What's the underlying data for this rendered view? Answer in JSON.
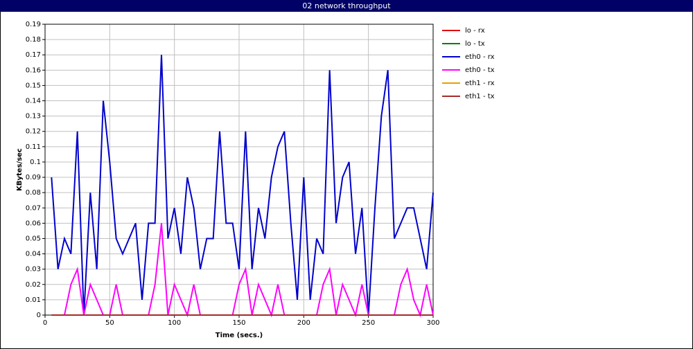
{
  "chart_data": {
    "type": "line",
    "title": "02 network throughput",
    "x_label": "Time (secs.)",
    "y_label": "KBytes/sec",
    "x": [
      5,
      10,
      15,
      20,
      25,
      30,
      35,
      40,
      45,
      50,
      55,
      60,
      65,
      70,
      75,
      80,
      85,
      90,
      95,
      100,
      105,
      110,
      115,
      120,
      125,
      130,
      135,
      140,
      145,
      150,
      155,
      160,
      165,
      170,
      175,
      180,
      185,
      190,
      195,
      200,
      205,
      210,
      215,
      220,
      225,
      230,
      235,
      240,
      245,
      250,
      255,
      260,
      265,
      270,
      275,
      280,
      285,
      290,
      295,
      300
    ],
    "xlim": [
      0,
      300
    ],
    "xticks": [
      0,
      50,
      100,
      150,
      200,
      250,
      300
    ],
    "ylim": [
      0,
      0.19
    ],
    "yticks": [
      0,
      0.01,
      0.02,
      0.03,
      0.04,
      0.05,
      0.06,
      0.07,
      0.08,
      0.09,
      0.1,
      0.11,
      0.12,
      0.13,
      0.14,
      0.15,
      0.16,
      0.17,
      0.18,
      0.19
    ],
    "grid": true,
    "legend": "right",
    "series": [
      {
        "name": "lo - rx",
        "color": "#e00000",
        "values": [
          0,
          0,
          0,
          0,
          0,
          0,
          0,
          0,
          0,
          0,
          0,
          0,
          0,
          0,
          0,
          0,
          0,
          0,
          0,
          0,
          0,
          0,
          0,
          0,
          0,
          0,
          0,
          0,
          0,
          0,
          0,
          0,
          0,
          0,
          0,
          0,
          0,
          0,
          0,
          0,
          0,
          0,
          0,
          0,
          0,
          0,
          0,
          0,
          0,
          0,
          0,
          0,
          0,
          0,
          0,
          0,
          0,
          0,
          0,
          0
        ]
      },
      {
        "name": "lo - tx",
        "color": "#008000",
        "values": [
          0,
          0,
          0,
          0,
          0,
          0,
          0,
          0,
          0,
          0,
          0,
          0,
          0,
          0,
          0,
          0,
          0,
          0,
          0,
          0,
          0,
          0,
          0,
          0,
          0,
          0,
          0,
          0,
          0,
          0,
          0,
          0,
          0,
          0,
          0,
          0,
          0,
          0,
          0,
          0,
          0,
          0,
          0,
          0,
          0,
          0,
          0,
          0,
          0,
          0,
          0,
          0,
          0,
          0,
          0,
          0,
          0,
          0,
          0,
          0
        ]
      },
      {
        "name": "eth0 - rx",
        "color": "#0000cc",
        "values": [
          0.09,
          0.03,
          0.05,
          0.04,
          0.12,
          0,
          0.08,
          0.03,
          0.14,
          0.1,
          0.05,
          0.04,
          0.05,
          0.06,
          0.01,
          0.06,
          0.06,
          0.17,
          0.05,
          0.07,
          0.04,
          0.09,
          0.07,
          0.03,
          0.05,
          0.05,
          0.12,
          0.06,
          0.06,
          0.03,
          0.12,
          0.03,
          0.07,
          0.05,
          0.09,
          0.11,
          0.12,
          0.06,
          0.01,
          0.09,
          0.01,
          0.05,
          0.04,
          0.16,
          0.06,
          0.09,
          0.1,
          0.04,
          0.07,
          0,
          0.07,
          0.13,
          0.16,
          0.05,
          0.06,
          0.07,
          0.07,
          0.05,
          0.03,
          0.08
        ]
      },
      {
        "name": "eth0 - tx",
        "color": "#ff00ff",
        "values": [
          0,
          0,
          0,
          0.02,
          0.03,
          0,
          0.02,
          0.01,
          0,
          0,
          0.02,
          0,
          0,
          0,
          0,
          0,
          0.02,
          0.06,
          0,
          0.02,
          0.01,
          0,
          0.02,
          0,
          0,
          0,
          0,
          0,
          0,
          0.02,
          0.03,
          0,
          0.02,
          0.01,
          0,
          0.02,
          0,
          0,
          0,
          0,
          0,
          0,
          0.02,
          0.03,
          0,
          0.02,
          0.01,
          0,
          0.02,
          0,
          0,
          0,
          0,
          0,
          0.02,
          0.03,
          0.01,
          0,
          0.02,
          0
        ]
      },
      {
        "name": "eth1 - rx",
        "color": "#e8a000",
        "values": [
          0,
          0,
          0,
          0,
          0,
          0,
          0,
          0,
          0,
          0,
          0,
          0,
          0,
          0,
          0,
          0,
          0,
          0,
          0,
          0,
          0,
          0,
          0,
          0,
          0,
          0,
          0,
          0,
          0,
          0,
          0,
          0,
          0,
          0,
          0,
          0,
          0,
          0,
          0,
          0,
          0,
          0,
          0,
          0,
          0,
          0,
          0,
          0,
          0,
          0,
          0,
          0,
          0,
          0,
          0,
          0,
          0,
          0,
          0,
          0
        ]
      },
      {
        "name": "eth1 - tx",
        "color": "#a52a2a",
        "values": [
          0,
          0,
          0,
          0,
          0,
          0,
          0,
          0,
          0,
          0,
          0,
          0,
          0,
          0,
          0,
          0,
          0,
          0,
          0,
          0,
          0,
          0,
          0,
          0,
          0,
          0,
          0,
          0,
          0,
          0,
          0,
          0,
          0,
          0,
          0,
          0,
          0,
          0,
          0,
          0,
          0,
          0,
          0,
          0,
          0,
          0,
          0,
          0,
          0,
          0,
          0,
          0,
          0,
          0,
          0,
          0,
          0,
          0,
          0,
          0
        ]
      }
    ]
  }
}
